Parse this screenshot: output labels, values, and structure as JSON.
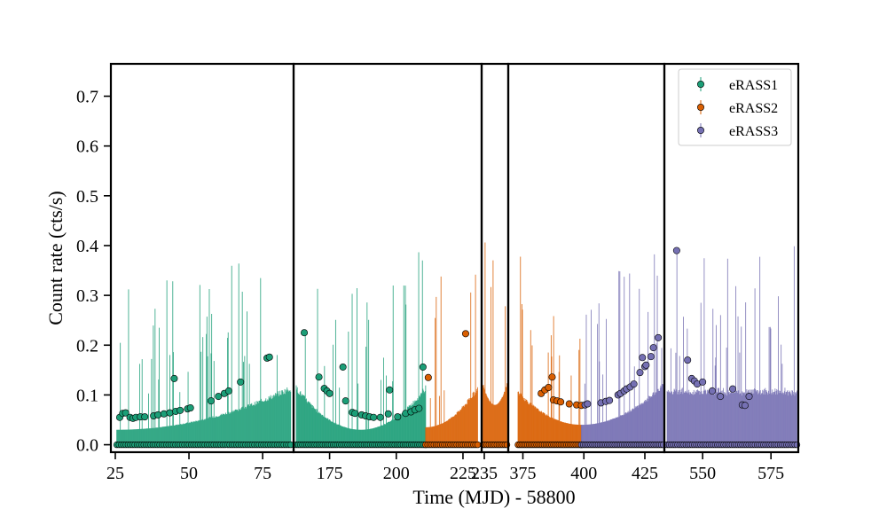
{
  "chart_data": {
    "type": "scatter",
    "xlabel": "Time (MJD) - 58800",
    "ylabel": "Count rate (cts/s)",
    "ylim": [
      -0.015,
      0.765
    ],
    "yticks": [
      0.0,
      0.1,
      0.2,
      0.3,
      0.4,
      0.5,
      0.6,
      0.7
    ],
    "ytick_labels": [
      "0.0",
      "0.1",
      "0.2",
      "0.3",
      "0.4",
      "0.5",
      "0.6",
      "0.7"
    ],
    "legend_position": "top-right",
    "panels": [
      {
        "xlim": [
          23.5,
          85.5
        ],
        "xticks": [
          25,
          50,
          75
        ],
        "xtick_labels": [
          "25",
          "50",
          "75"
        ]
      },
      {
        "xlim": [
          161.5,
          232.0
        ],
        "xticks": [
          175,
          200,
          225
        ],
        "xtick_labels": [
          "175",
          "200",
          "225"
        ]
      },
      {
        "xlim": [
          234.0,
          244.0
        ],
        "xticks": [
          235
        ],
        "xtick_labels": [
          "235"
        ]
      },
      {
        "xlim": [
          369.0,
          433.0
        ],
        "xticks": [
          375,
          400,
          425
        ],
        "xtick_labels": [
          "375",
          "400",
          "425"
        ]
      },
      {
        "xlim": [
          536.0,
          585.0
        ],
        "xticks": [
          550,
          575
        ],
        "xtick_labels": [
          "550",
          "575"
        ]
      }
    ],
    "series": [
      {
        "name": "eRASS1",
        "color": "#1b9e77",
        "points": [
          {
            "x": 26.5,
            "y": 0.055
          },
          {
            "x": 27.5,
            "y": 0.063
          },
          {
            "x": 28.5,
            "y": 0.064
          },
          {
            "x": 30.0,
            "y": 0.055
          },
          {
            "x": 31.0,
            "y": 0.053
          },
          {
            "x": 32.0,
            "y": 0.055
          },
          {
            "x": 33.5,
            "y": 0.056
          },
          {
            "x": 35.0,
            "y": 0.056
          },
          {
            "x": 38.0,
            "y": 0.058
          },
          {
            "x": 39.5,
            "y": 0.06
          },
          {
            "x": 41.5,
            "y": 0.062
          },
          {
            "x": 43.5,
            "y": 0.064
          },
          {
            "x": 45.0,
            "y": 0.133
          },
          {
            "x": 45.5,
            "y": 0.067
          },
          {
            "x": 47.0,
            "y": 0.069
          },
          {
            "x": 49.5,
            "y": 0.072
          },
          {
            "x": 50.5,
            "y": 0.074
          },
          {
            "x": 57.5,
            "y": 0.088
          },
          {
            "x": 60.0,
            "y": 0.097
          },
          {
            "x": 62.0,
            "y": 0.103
          },
          {
            "x": 63.5,
            "y": 0.108
          },
          {
            "x": 67.5,
            "y": 0.126
          },
          {
            "x": 76.5,
            "y": 0.174
          },
          {
            "x": 77.3,
            "y": 0.176
          },
          {
            "x": 165.5,
            "y": 0.225
          },
          {
            "x": 171.0,
            "y": 0.136
          },
          {
            "x": 173.0,
            "y": 0.113
          },
          {
            "x": 174.0,
            "y": 0.108
          },
          {
            "x": 175.0,
            "y": 0.103
          },
          {
            "x": 180.0,
            "y": 0.156
          },
          {
            "x": 181.0,
            "y": 0.088
          },
          {
            "x": 183.5,
            "y": 0.065
          },
          {
            "x": 184.5,
            "y": 0.063
          },
          {
            "x": 187.0,
            "y": 0.06
          },
          {
            "x": 188.5,
            "y": 0.058
          },
          {
            "x": 190.0,
            "y": 0.056
          },
          {
            "x": 191.5,
            "y": 0.055
          },
          {
            "x": 194.0,
            "y": 0.055
          },
          {
            "x": 197.0,
            "y": 0.062
          },
          {
            "x": 197.5,
            "y": 0.11
          },
          {
            "x": 200.5,
            "y": 0.056
          },
          {
            "x": 203.5,
            "y": 0.063
          },
          {
            "x": 205.5,
            "y": 0.066
          },
          {
            "x": 207.0,
            "y": 0.07
          },
          {
            "x": 208.5,
            "y": 0.073
          },
          {
            "x": 210.0,
            "y": 0.156
          }
        ]
      },
      {
        "name": "eRASS2",
        "color": "#d95f02",
        "points": [
          {
            "x": 212.0,
            "y": 0.135
          },
          {
            "x": 226.0,
            "y": 0.223
          },
          {
            "x": 382.5,
            "y": 0.103
          },
          {
            "x": 384.0,
            "y": 0.11
          },
          {
            "x": 385.5,
            "y": 0.115
          },
          {
            "x": 387.0,
            "y": 0.136
          },
          {
            "x": 387.5,
            "y": 0.09
          },
          {
            "x": 389.0,
            "y": 0.088
          },
          {
            "x": 390.5,
            "y": 0.086
          },
          {
            "x": 394.0,
            "y": 0.082
          },
          {
            "x": 397.0,
            "y": 0.08
          },
          {
            "x": 399.0,
            "y": 0.079
          }
        ]
      },
      {
        "name": "eRASS3",
        "color": "#7570b3",
        "points": [
          {
            "x": 400.5,
            "y": 0.08
          },
          {
            "x": 401.5,
            "y": 0.082
          },
          {
            "x": 407.0,
            "y": 0.084
          },
          {
            "x": 409.0,
            "y": 0.087
          },
          {
            "x": 410.5,
            "y": 0.089
          },
          {
            "x": 414.0,
            "y": 0.1
          },
          {
            "x": 415.0,
            "y": 0.103
          },
          {
            "x": 416.5,
            "y": 0.108
          },
          {
            "x": 417.5,
            "y": 0.112
          },
          {
            "x": 419.0,
            "y": 0.116
          },
          {
            "x": 420.5,
            "y": 0.122
          },
          {
            "x": 423.0,
            "y": 0.145
          },
          {
            "x": 424.0,
            "y": 0.175
          },
          {
            "x": 425.0,
            "y": 0.157
          },
          {
            "x": 425.5,
            "y": 0.16
          },
          {
            "x": 427.5,
            "y": 0.177
          },
          {
            "x": 428.5,
            "y": 0.195
          },
          {
            "x": 430.5,
            "y": 0.215
          },
          {
            "x": 540.5,
            "y": 0.39
          },
          {
            "x": 544.5,
            "y": 0.17
          },
          {
            "x": 546.0,
            "y": 0.133
          },
          {
            "x": 547.0,
            "y": 0.128
          },
          {
            "x": 548.0,
            "y": 0.122
          },
          {
            "x": 550.0,
            "y": 0.126
          },
          {
            "x": 553.5,
            "y": 0.108
          },
          {
            "x": 556.5,
            "y": 0.097
          },
          {
            "x": 561.0,
            "y": 0.112
          },
          {
            "x": 564.5,
            "y": 0.08
          },
          {
            "x": 565.5,
            "y": 0.079
          },
          {
            "x": 567.0,
            "y": 0.097
          }
        ]
      }
    ]
  }
}
